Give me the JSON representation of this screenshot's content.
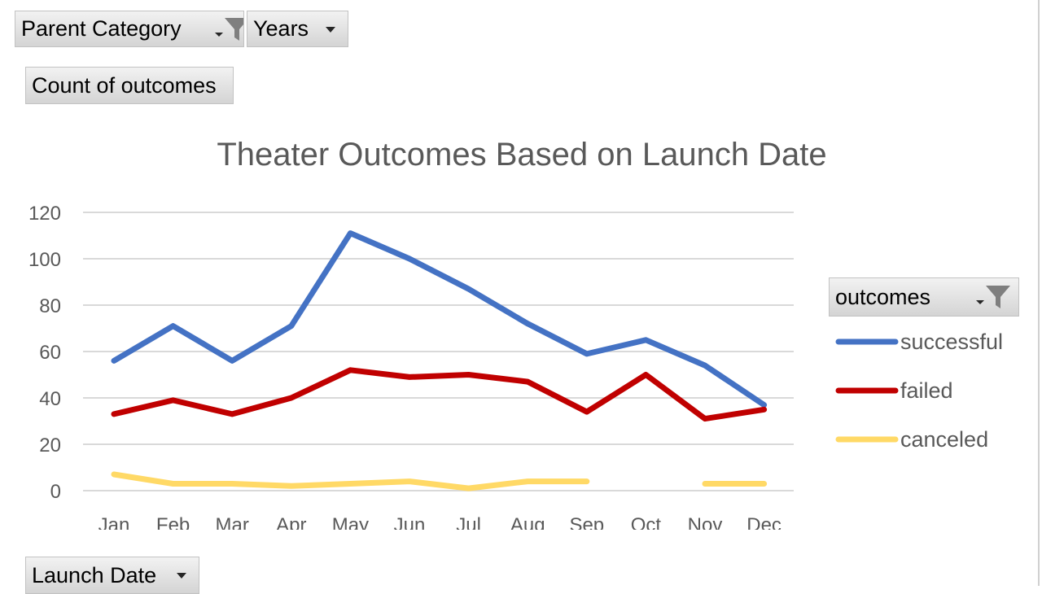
{
  "filters": {
    "parent_category": "Parent Category",
    "years": "Years",
    "values_field": "Count of outcomes",
    "legend_field": "outcomes",
    "axis_field": "Launch Date"
  },
  "icons": {
    "filter": "funnel-filter-icon",
    "dropdown": "chevron-down-icon"
  },
  "chart_data": {
    "type": "line",
    "title": "Theater Outcomes Based on Launch Date",
    "xlabel": "",
    "ylabel": "",
    "categories": [
      "Jan",
      "Feb",
      "Mar",
      "Apr",
      "May",
      "Jun",
      "Jul",
      "Aug",
      "Sep",
      "Oct",
      "Nov",
      "Dec"
    ],
    "ylim": [
      0,
      120
    ],
    "yticks": [
      0,
      20,
      40,
      60,
      80,
      100,
      120
    ],
    "grid": true,
    "legend_placement": "right",
    "series": [
      {
        "name": "successful",
        "color": "#4472c4",
        "values": [
          56,
          71,
          56,
          71,
          111,
          100,
          87,
          72,
          59,
          65,
          54,
          37
        ]
      },
      {
        "name": "failed",
        "color": "#c00000",
        "values": [
          33,
          39,
          33,
          40,
          52,
          49,
          50,
          47,
          34,
          50,
          31,
          35
        ]
      },
      {
        "name": "canceled",
        "color": "#ffd966",
        "values": [
          7,
          3,
          3,
          2,
          3,
          4,
          1,
          4,
          4,
          null,
          3,
          3
        ]
      }
    ]
  }
}
